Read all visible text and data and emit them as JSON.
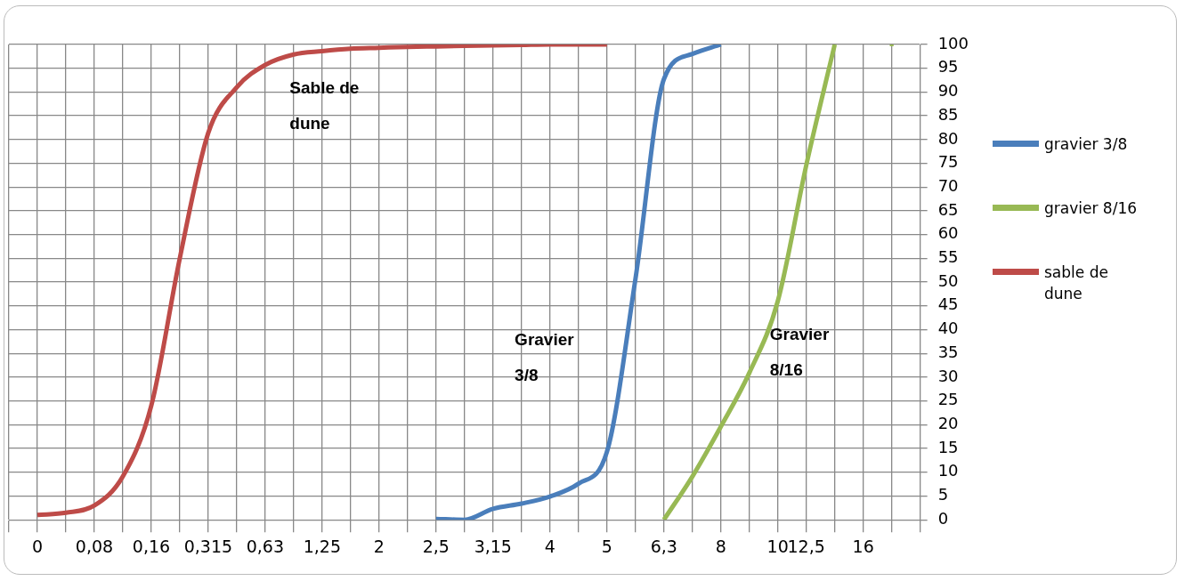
{
  "chart_data": {
    "type": "line",
    "categories": [
      null,
      "0",
      null,
      "0,08",
      null,
      "0,16",
      null,
      "0,315",
      null,
      "0,63",
      null,
      "1,25",
      null,
      "2",
      null,
      "2,5",
      null,
      "3,15",
      null,
      "4",
      null,
      "5",
      null,
      "6,3",
      null,
      "8",
      null,
      "10",
      "12,5",
      null,
      "16",
      null,
      null
    ],
    "series": [
      {
        "name": "gravier 3/8",
        "color": "#4a7ebb",
        "values": [
          null,
          null,
          null,
          null,
          null,
          null,
          null,
          null,
          null,
          null,
          null,
          null,
          null,
          null,
          null,
          0.2,
          0,
          2.3,
          3.4,
          4.9,
          7.6,
          14.3,
          50.6,
          92.7,
          98,
          100,
          null,
          null,
          null,
          null,
          null,
          null,
          null
        ]
      },
      {
        "name": "gravier 8/16",
        "color": "#98b954",
        "values": [
          null,
          null,
          null,
          null,
          null,
          null,
          null,
          null,
          null,
          null,
          null,
          null,
          null,
          null,
          null,
          null,
          null,
          null,
          null,
          null,
          null,
          null,
          null,
          0,
          9.1,
          19.6,
          30.9,
          46,
          74.6,
          100,
          null,
          100,
          null
        ]
      },
      {
        "name": "sable de dune",
        "color": "#be4b48",
        "values": [
          null,
          1,
          1.5,
          3,
          9.1,
          24,
          55,
          81.4,
          91,
          95.7,
          97.9,
          98.6,
          99.1,
          99.3,
          99.5,
          99.6,
          99.7,
          99.8,
          99.9,
          100,
          100,
          100,
          null,
          null,
          null,
          null,
          null,
          null,
          null,
          null,
          null,
          null,
          null
        ]
      }
    ],
    "ylim": [
      0,
      100
    ],
    "yticks": [
      0,
      5,
      10,
      15,
      20,
      25,
      30,
      35,
      40,
      45,
      50,
      55,
      60,
      65,
      70,
      75,
      80,
      85,
      90,
      95,
      100
    ],
    "grid": true,
    "legend": "right",
    "marker": "none",
    "line_style": "solid",
    "annotations": [
      "Sable de dune",
      "Gravier 3/8",
      "Gravier 8/16"
    ]
  }
}
